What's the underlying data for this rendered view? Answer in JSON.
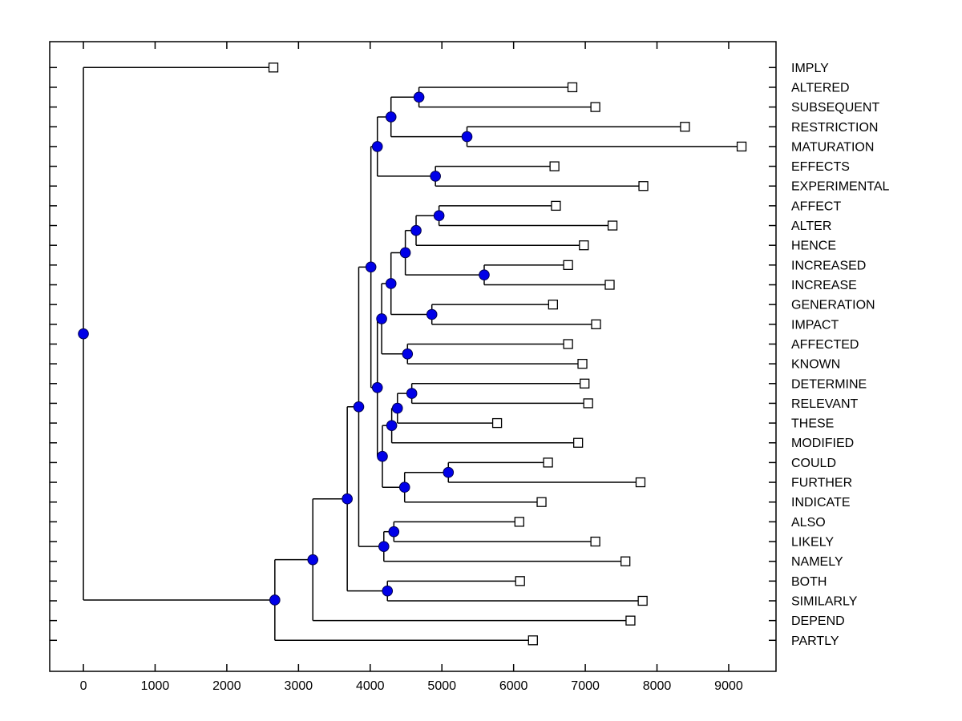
{
  "figure": {
    "background": "#ffffff"
  },
  "chart_data": {
    "type": "dendrogram",
    "orientation": "horizontal-root-left",
    "title": "",
    "xlabel": "",
    "ylabel": "",
    "grid": false,
    "x_axis": {
      "tick_values": [
        0,
        1000,
        2000,
        3000,
        4000,
        5000,
        6000,
        7000,
        8000,
        9000
      ],
      "tick_labels": [
        "0",
        "1000",
        "2000",
        "3000",
        "4000",
        "5000",
        "6000",
        "7000",
        "8000",
        "9000"
      ],
      "range": [
        -470,
        9660
      ]
    },
    "styles": {
      "line_color": "#000000",
      "internal_marker_fill": "#0000e8",
      "internal_marker_edge": "#000050",
      "leaf_marker_fill": "#ffffff",
      "leaf_marker_edge": "#000000"
    },
    "leaves_top_to_bottom": [
      {
        "label": "IMPLY",
        "value": 2650
      },
      {
        "label": "ALTERED",
        "value": 6820
      },
      {
        "label": "SUBSEQUENT",
        "value": 7140
      },
      {
        "label": "RESTRICTION",
        "value": 8390
      },
      {
        "label": "MATURATION",
        "value": 9180
      },
      {
        "label": "EFFECTS",
        "value": 6570
      },
      {
        "label": "EXPERIMENTAL",
        "value": 7810
      },
      {
        "label": "AFFECT",
        "value": 6590
      },
      {
        "label": "ALTER",
        "value": 7380
      },
      {
        "label": "HENCE",
        "value": 6980
      },
      {
        "label": "INCREASED",
        "value": 6760
      },
      {
        "label": "INCREASE",
        "value": 7340
      },
      {
        "label": "GENERATION",
        "value": 6550
      },
      {
        "label": "IMPACT",
        "value": 7150
      },
      {
        "label": "AFFECTED",
        "value": 6760
      },
      {
        "label": "KNOWN",
        "value": 6960
      },
      {
        "label": "DETERMINE",
        "value": 6990
      },
      {
        "label": "RELEVANT",
        "value": 7040
      },
      {
        "label": "THESE",
        "value": 5770
      },
      {
        "label": "MODIFIED",
        "value": 6900
      },
      {
        "label": "COULD",
        "value": 6480
      },
      {
        "label": "FURTHER",
        "value": 7770
      },
      {
        "label": "INDICATE",
        "value": 6390
      },
      {
        "label": "ALSO",
        "value": 6080
      },
      {
        "label": "LIKELY",
        "value": 7140
      },
      {
        "label": "NAMELY",
        "value": 7560
      },
      {
        "label": "BOTH",
        "value": 6090
      },
      {
        "label": "SIMILARLY",
        "value": 7800
      },
      {
        "label": "DEPEND",
        "value": 7630
      },
      {
        "label": "PARTLY",
        "value": 6270
      }
    ],
    "tree": {
      "v": 0,
      "c": [
        {
          "leaf": "IMPLY",
          "v": 2650
        },
        {
          "v": 2670,
          "c": [
            {
              "v": 3200,
              "c": [
                {
                  "v": 3680,
                  "c": [
                    {
                      "v": 3840,
                      "c": [
                        {
                          "v": 4010,
                          "c": [
                            {
                              "v": 4100,
                              "c": [
                                {
                                  "v": 4290,
                                  "c": [
                                    {
                                      "v": 4680,
                                      "c": [
                                        {
                                          "leaf": "ALTERED",
                                          "v": 6820
                                        },
                                        {
                                          "leaf": "SUBSEQUENT",
                                          "v": 7140
                                        }
                                      ]
                                    },
                                    {
                                      "v": 5350,
                                      "c": [
                                        {
                                          "leaf": "RESTRICTION",
                                          "v": 8390
                                        },
                                        {
                                          "leaf": "MATURATION",
                                          "v": 9180
                                        }
                                      ]
                                    }
                                  ]
                                },
                                {
                                  "v": 4910,
                                  "c": [
                                    {
                                      "leaf": "EFFECTS",
                                      "v": 6570
                                    },
                                    {
                                      "leaf": "EXPERIMENTAL",
                                      "v": 7810
                                    }
                                  ]
                                }
                              ]
                            },
                            {
                              "v": 4100,
                              "c": [
                                {
                                  "v": 4160,
                                  "c": [
                                    {
                                      "v": 4290,
                                      "c": [
                                        {
                                          "v": 4490,
                                          "c": [
                                            {
                                              "v": 4640,
                                              "c": [
                                                {
                                                  "v": 4960,
                                                  "c": [
                                                    {
                                                      "leaf": "AFFECT",
                                                      "v": 6590
                                                    },
                                                    {
                                                      "leaf": "ALTER",
                                                      "v": 7380
                                                    }
                                                  ]
                                                },
                                                {
                                                  "leaf": "HENCE",
                                                  "v": 6980
                                                }
                                              ]
                                            },
                                            {
                                              "v": 5590,
                                              "c": [
                                                {
                                                  "leaf": "INCREASED",
                                                  "v": 6760
                                                },
                                                {
                                                  "leaf": "INCREASE",
                                                  "v": 7340
                                                }
                                              ]
                                            }
                                          ]
                                        },
                                        {
                                          "v": 4860,
                                          "c": [
                                            {
                                              "leaf": "GENERATION",
                                              "v": 6550
                                            },
                                            {
                                              "leaf": "IMPACT",
                                              "v": 7150
                                            }
                                          ]
                                        }
                                      ]
                                    },
                                    {
                                      "v": 4520,
                                      "c": [
                                        {
                                          "leaf": "AFFECTED",
                                          "v": 6760
                                        },
                                        {
                                          "leaf": "KNOWN",
                                          "v": 6960
                                        }
                                      ]
                                    }
                                  ]
                                },
                                {
                                  "v": 4170,
                                  "c": [
                                    {
                                      "v": 4300,
                                      "c": [
                                        {
                                          "v": 4380,
                                          "c": [
                                            {
                                              "v": 4580,
                                              "c": [
                                                {
                                                  "leaf": "DETERMINE",
                                                  "v": 6990
                                                },
                                                {
                                                  "leaf": "RELEVANT",
                                                  "v": 7040
                                                }
                                              ]
                                            },
                                            {
                                              "leaf": "THESE",
                                              "v": 5770
                                            }
                                          ]
                                        },
                                        {
                                          "leaf": "MODIFIED",
                                          "v": 6900
                                        }
                                      ]
                                    },
                                    {
                                      "v": 4480,
                                      "c": [
                                        {
                                          "v": 5090,
                                          "c": [
                                            {
                                              "leaf": "COULD",
                                              "v": 6480
                                            },
                                            {
                                              "leaf": "FURTHER",
                                              "v": 7770
                                            }
                                          ]
                                        },
                                        {
                                          "leaf": "INDICATE",
                                          "v": 6390
                                        }
                                      ]
                                    }
                                  ]
                                }
                              ]
                            }
                          ]
                        },
                        {
                          "v": 4190,
                          "c": [
                            {
                              "v": 4330,
                              "c": [
                                {
                                  "leaf": "ALSO",
                                  "v": 6080
                                },
                                {
                                  "leaf": "LIKELY",
                                  "v": 7140
                                }
                              ]
                            },
                            {
                              "leaf": "NAMELY",
                              "v": 7560
                            }
                          ]
                        }
                      ]
                    },
                    {
                      "v": 4240,
                      "c": [
                        {
                          "leaf": "BOTH",
                          "v": 6090
                        },
                        {
                          "leaf": "SIMILARLY",
                          "v": 7800
                        }
                      ]
                    }
                  ]
                },
                {
                  "leaf": "DEPEND",
                  "v": 7630
                }
              ]
            },
            {
              "leaf": "PARTLY",
              "v": 6270
            }
          ]
        }
      ]
    }
  }
}
